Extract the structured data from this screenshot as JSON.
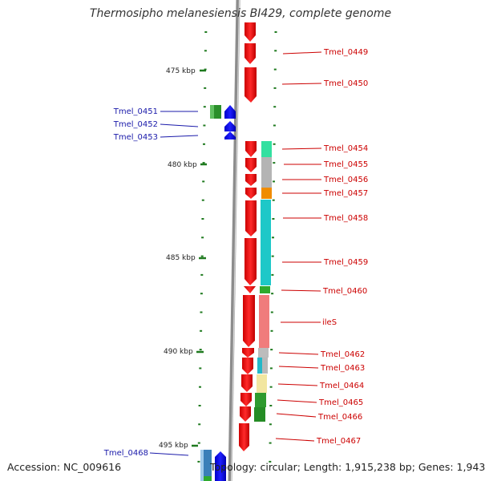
{
  "title": "Thermosipho melanesiensis BI429, complete genome",
  "footer": {
    "accession": "Accession: NC_009616",
    "topology": "Topology: circular; Length: 1,915,238 bp; Genes: 1,943"
  },
  "ruler_labels": [
    "475 kbp",
    "480 kbp",
    "485 kbp",
    "490 kbp",
    "495 kbp"
  ],
  "forward_genes": [
    "Tmel_0451",
    "Tmel_0452",
    "Tmel_0453",
    "Tmel_0468"
  ],
  "reverse_genes": [
    "Tmel_0449",
    "Tmel_0450",
    "Tmel_0454",
    "Tmel_0455",
    "Tmel_0456",
    "Tmel_0457",
    "Tmel_0458",
    "Tmel_0459",
    "Tmel_0460",
    "ileS",
    "Tmel_0462",
    "Tmel_0463",
    "Tmel_0464",
    "Tmel_0465",
    "Tmel_0466",
    "Tmel_0467"
  ],
  "colors": {
    "reverse_strand": "#ff0000",
    "forward_strand": "#0000ff",
    "reverse_label": "#cc0000",
    "forward_label": "#1a1aaa",
    "tick": "#1f7a1f",
    "backbone": "#8c8c8c"
  }
}
